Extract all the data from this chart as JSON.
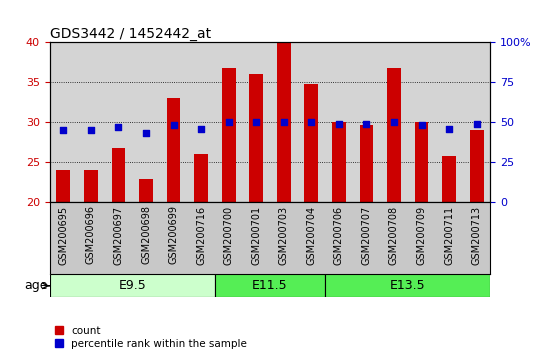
{
  "title": "GDS3442 / 1452442_at",
  "samples": [
    "GSM200695",
    "GSM200696",
    "GSM200697",
    "GSM200698",
    "GSM200699",
    "GSM200716",
    "GSM200700",
    "GSM200701",
    "GSM200703",
    "GSM200704",
    "GSM200706",
    "GSM200707",
    "GSM200708",
    "GSM200709",
    "GSM200711",
    "GSM200713"
  ],
  "count_values": [
    24.0,
    24.0,
    26.8,
    22.8,
    33.0,
    26.0,
    36.8,
    36.0,
    40.0,
    34.8,
    30.0,
    29.6,
    36.8,
    30.0,
    25.8,
    29.0
  ],
  "percentile_values": [
    45,
    45,
    47,
    43,
    48,
    46,
    50,
    50,
    50,
    50,
    49,
    49,
    50,
    48,
    46,
    49
  ],
  "groups": [
    {
      "label": "E9.5",
      "start": 0,
      "end": 6,
      "color": "#ccffcc"
    },
    {
      "label": "E11.5",
      "start": 6,
      "end": 10,
      "color": "#55ee55"
    },
    {
      "label": "E13.5",
      "start": 10,
      "end": 16,
      "color": "#55ee55"
    }
  ],
  "ylim_left": [
    20,
    40
  ],
  "ylim_right": [
    0,
    100
  ],
  "yticks_left": [
    20,
    25,
    30,
    35,
    40
  ],
  "yticks_right": [
    0,
    25,
    50,
    75,
    100
  ],
  "bar_color": "#cc0000",
  "dot_color": "#0000cc",
  "bar_width": 0.5,
  "bg_color": "#d4d4d4",
  "xticklabel_bg": "#c8c8c8",
  "label_count": "count",
  "label_percentile": "percentile rank within the sample",
  "age_label": "age",
  "dotted_lines": [
    25,
    30,
    35
  ],
  "title_fontsize": 10,
  "tick_fontsize": 8,
  "xlabel_fontsize": 7,
  "group_fontsize": 9
}
